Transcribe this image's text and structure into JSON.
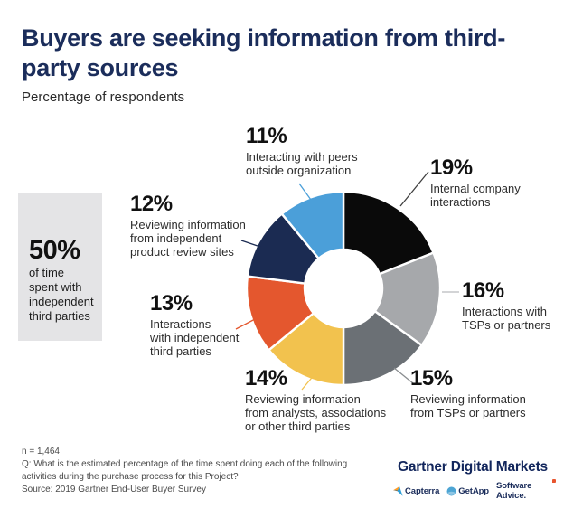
{
  "header": {
    "title": "Buyers are seeking information from third-party sources",
    "subtitle": "Percentage of respondents"
  },
  "callout": {
    "value": "50%",
    "text": "of time\nspent with\nindependent\nthird parties"
  },
  "chart_data": {
    "type": "pie",
    "subtype": "donut",
    "title": "Buyers are seeking information from third-party sources",
    "units": "Percentage of respondents",
    "start_angle_deg": 0,
    "direction": "clockwise",
    "slices": [
      {
        "label": "Internal company interactions",
        "value": 19,
        "color": "#0a0a0a"
      },
      {
        "label": "Interactions with TSPs or partners",
        "value": 16,
        "color": "#a6a8ab"
      },
      {
        "label": "Reviewing information from TSPs or partners",
        "value": 15,
        "color": "#6b7075"
      },
      {
        "label": "Reviewing information from analysts, associations or other third parties",
        "value": 14,
        "color": "#f2c24e"
      },
      {
        "label": "Interactions with independent third parties",
        "value": 13,
        "color": "#e4572e"
      },
      {
        "label": "Reviewing information from independent product review sites",
        "value": 12,
        "color": "#1b2b52"
      },
      {
        "label": "Interacting with peers outside organization",
        "value": 11,
        "color": "#4b9fd9"
      }
    ],
    "callout_note": "50% of time spent with independent third parties"
  },
  "annotations": {
    "a11": {
      "pct": "11%",
      "desc": "Interacting with peers\noutside organization"
    },
    "a19": {
      "pct": "19%",
      "desc": "Internal company\ninteractions"
    },
    "a12": {
      "pct": "12%",
      "desc": "Reviewing information\nfrom independent\nproduct review sites"
    },
    "a16": {
      "pct": "16%",
      "desc": "Interactions with\nTSPs or partners"
    },
    "a13": {
      "pct": "13%",
      "desc": "Interactions\nwith independent\nthird parties"
    },
    "a14": {
      "pct": "14%",
      "desc": "Reviewing information\nfrom analysts, associations\nor other third parties"
    },
    "a15": {
      "pct": "15%",
      "desc": "Reviewing information\nfrom TSPs or partners"
    }
  },
  "footer": {
    "n": "n = 1,464",
    "question": "Q: What is the estimated percentage of the time spent doing each of the following\nactivities during the purchase process for this Project?",
    "source": "Source: 2019 Gartner End-User Buyer Survey",
    "brand": "Gartner Digital Markets",
    "logos": {
      "capterra": "Capterra",
      "getapp": "GetApp",
      "software_advice": "Software Advice."
    }
  }
}
